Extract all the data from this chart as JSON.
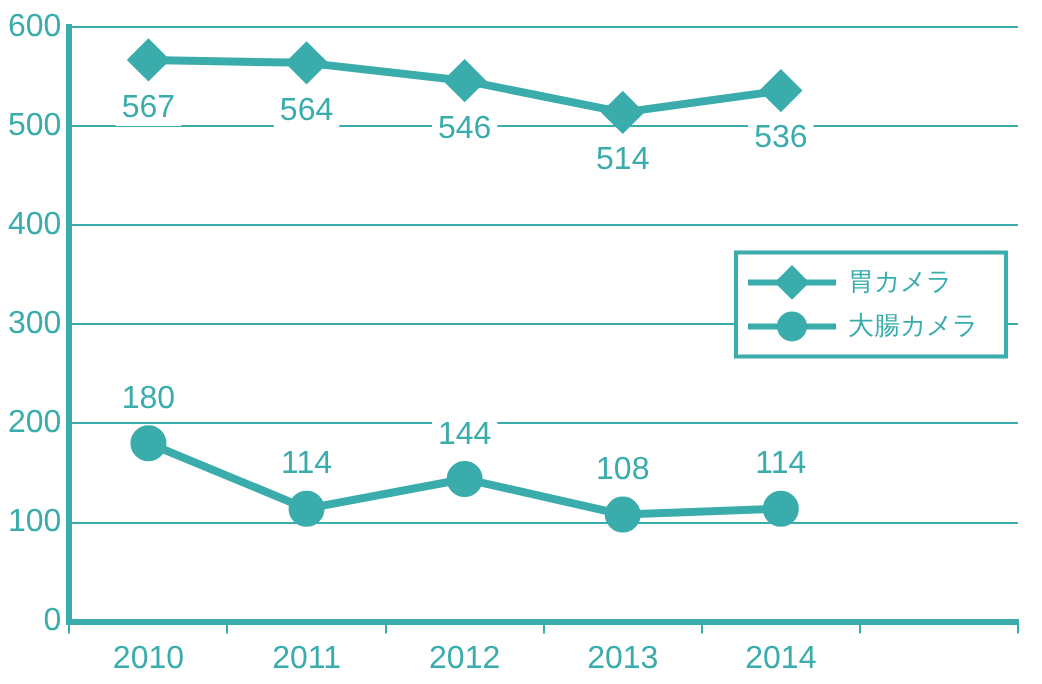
{
  "chart_data": {
    "type": "line",
    "categories": [
      "2010",
      "2011",
      "2012",
      "2013",
      "2014",
      null
    ],
    "series": [
      {
        "name": "胃カメラ",
        "color": "#3aacac",
        "marker": "diamond",
        "values": [
          567,
          564,
          546,
          514,
          536,
          null
        ]
      },
      {
        "name": "大腸カメラ",
        "color": "#3aacac",
        "marker": "circle",
        "values": [
          180,
          114,
          144,
          108,
          114,
          null
        ]
      }
    ],
    "ylim": [
      0,
      600
    ],
    "yticks": [
      0,
      100,
      200,
      300,
      400,
      500,
      600
    ],
    "grid": "y",
    "legend": "right",
    "data_labels": true
  }
}
